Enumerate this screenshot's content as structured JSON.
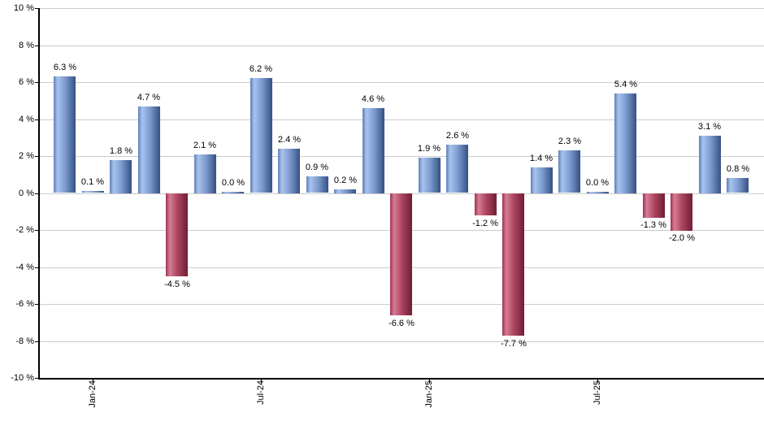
{
  "chart_data": {
    "type": "bar",
    "title": "",
    "xlabel": "",
    "ylabel": "",
    "values": [
      6.3,
      0.1,
      1.8,
      4.7,
      -4.5,
      2.1,
      0.0,
      6.2,
      2.4,
      0.9,
      0.2,
      4.6,
      -6.6,
      1.9,
      2.6,
      -1.2,
      -7.7,
      1.4,
      2.3,
      0.0,
      5.4,
      -1.3,
      -2.0,
      3.1,
      0.8
    ],
    "bar_label_suffix": " %",
    "bar_labels": [
      "6.3 %",
      "0.1 %",
      "1.8 %",
      "4.7 %",
      "-4.5 %",
      "2.1 %",
      "0.0 %",
      "6.2 %",
      "2.4 %",
      "0.9 %",
      "0.2 %",
      "4.6 %",
      "-6.6 %",
      "1.9 %",
      "2.6 %",
      "-1.2 %",
      "-7.7 %",
      "1.4 %",
      "2.3 %",
      "0.0 %",
      "5.4 %",
      "-1.3 %",
      "-2.0 %",
      "3.1 %",
      "0.8 %"
    ],
    "ylim": [
      -10,
      10
    ],
    "y_ticks": [
      10,
      8,
      6,
      4,
      2,
      0,
      -2,
      -4,
      -6,
      -8,
      -10
    ],
    "y_tick_labels": [
      "10 %",
      "8 %",
      "6 %",
      "4 %",
      "2 %",
      "0 %",
      "-2 %",
      "-4 %",
      "-6 %",
      "-8 %",
      "-10 %"
    ],
    "x_tick_labels": [
      "Jan-24",
      "Jul-24",
      "Jan-25",
      "Jul-25"
    ],
    "x_tick_bar_indices": [
      1,
      7,
      13,
      19
    ],
    "grid": true,
    "legend": "none",
    "colors": {
      "background": "#ffffff",
      "gridline": "#cccccc",
      "axis": "#000000",
      "text": "#000000",
      "positive_edge": "#5d7fb7",
      "positive_highlight": "#a9c3ee",
      "positive_mid": "#7e9cd0",
      "positive_dark": "#365184",
      "negative_edge": "#9e3053",
      "negative_highlight": "#d67d93",
      "negative_mid": "#ad4662",
      "negative_dark": "#711d34"
    }
  }
}
